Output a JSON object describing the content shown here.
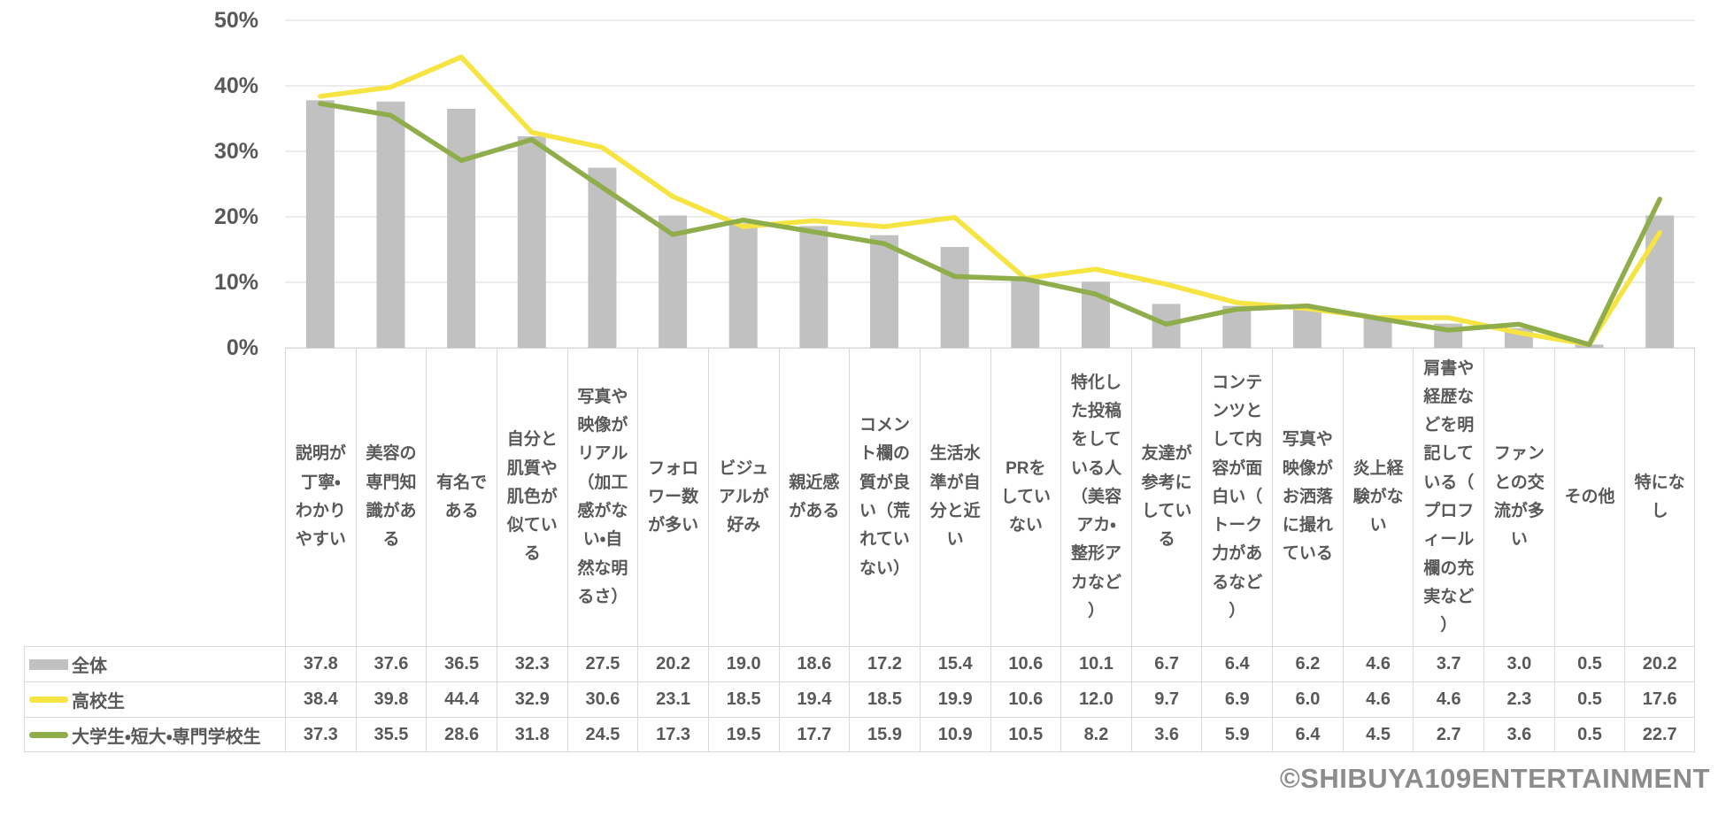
{
  "chart_data": {
    "type": "bar+line",
    "categories": [
      "説明が丁寧・わかりやすい",
      "美容の専門知識がある",
      "有名である",
      "自分と肌質や肌色が似ている",
      "写真や映像がリアル（加工感がない・自然な明るさ）",
      "フォロワー数が多い",
      "ビジュアルが好み",
      "親近感がある",
      "コメント欄の質が良い（荒れていない）",
      "生活水準が自分と近い",
      "PRをしていない",
      "特化した投稿をしている人（美容アカ・整形アカなど）",
      "友達が参考にしている",
      "コンテンツとして内容が面白い（トーク力があるなど）",
      "写真や映像がお洒落に撮れている",
      "炎上経験がない",
      "肩書や経歴などを明記している（プロフィール欄の充実など）",
      "ファンとの交流が多い",
      "その他",
      "特になし"
    ],
    "series": [
      {
        "name": "全体",
        "type": "bar",
        "color": "#C1C1C1",
        "values": [
          37.8,
          37.6,
          36.5,
          32.3,
          27.5,
          20.2,
          19.0,
          18.6,
          17.2,
          15.4,
          10.6,
          10.1,
          6.7,
          6.4,
          6.2,
          4.6,
          3.7,
          3.0,
          0.5,
          20.2
        ]
      },
      {
        "name": "高校生",
        "type": "line",
        "color": "#F5E441",
        "values": [
          38.4,
          39.8,
          44.4,
          32.9,
          30.6,
          23.1,
          18.5,
          19.4,
          18.5,
          19.9,
          10.6,
          12.0,
          9.7,
          6.9,
          6.0,
          4.6,
          4.6,
          2.3,
          0.5,
          17.6
        ]
      },
      {
        "name": "大学生・短大・専門学校生",
        "type": "line",
        "color": "#8FAD4B",
        "values": [
          37.3,
          35.5,
          28.6,
          31.8,
          24.5,
          17.3,
          19.5,
          17.7,
          15.9,
          10.9,
          10.5,
          8.2,
          3.6,
          5.9,
          6.4,
          4.5,
          2.7,
          3.6,
          0.5,
          22.7
        ]
      }
    ],
    "ylabel": "",
    "xlabel": "",
    "title": "",
    "ylim": [
      0,
      50
    ],
    "yticks": [
      "0%",
      "10%",
      "20%",
      "30%",
      "40%",
      "50%"
    ],
    "grid": true,
    "gridline_color": "#D9D9D9",
    "legend_position": "table-left"
  },
  "footer": {
    "copyright": "©SHIBUYA109ENTERTAINMENT"
  }
}
